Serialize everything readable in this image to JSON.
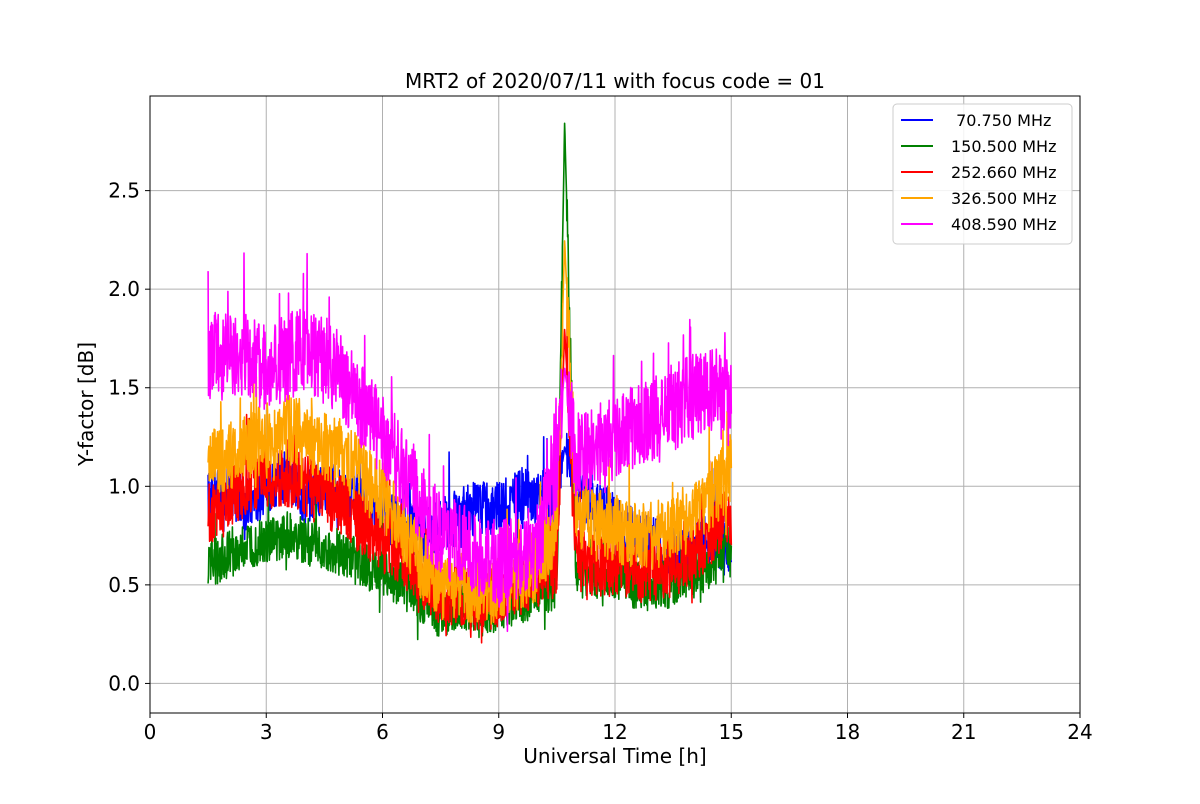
{
  "chart_data": {
    "type": "line",
    "title": "MRT2 of 2020/07/11 with focus code = 01",
    "xlabel": "Universal Time [h]",
    "ylabel": "Y-factor [dB]",
    "xlim": [
      0,
      24
    ],
    "ylim": [
      -0.15,
      2.98
    ],
    "xticks": [
      0,
      3,
      6,
      9,
      12,
      15,
      18,
      21,
      24
    ],
    "xtick_labels": [
      "0",
      "3",
      "6",
      "9",
      "12",
      "15",
      "18",
      "21",
      "24"
    ],
    "yticks": [
      0.0,
      0.5,
      1.0,
      1.5,
      2.0,
      2.5
    ],
    "ytick_labels": [
      "0.0",
      "0.5",
      "1.0",
      "1.5",
      "2.0",
      "2.5"
    ],
    "grid": true,
    "legend_position": "top-right",
    "series": [
      {
        "name": " 70.750 MHz",
        "color": "#0000ff",
        "x": [
          1.5,
          2.0,
          2.5,
          3.0,
          3.5,
          4.0,
          4.5,
          5.0,
          5.5,
          6.0,
          6.5,
          7.0,
          7.5,
          8.0,
          8.5,
          9.0,
          9.5,
          10.0,
          10.5,
          10.7,
          11.0,
          11.5,
          12.0,
          12.5,
          13.0,
          13.5,
          14.0,
          14.5,
          15.0
        ],
        "y": [
          0.95,
          1.0,
          0.9,
          1.0,
          1.05,
          0.95,
          1.0,
          0.95,
          0.9,
          0.85,
          0.8,
          0.75,
          0.8,
          0.85,
          0.9,
          0.88,
          0.95,
          0.95,
          0.9,
          1.2,
          0.95,
          0.9,
          0.85,
          0.75,
          0.7,
          0.65,
          0.7,
          0.75,
          0.65
        ],
        "amplitude": 0.14
      },
      {
        "name": "150.500 MHz",
        "color": "#008000",
        "x": [
          1.5,
          2.0,
          2.5,
          3.0,
          3.5,
          4.0,
          4.5,
          5.0,
          5.5,
          6.0,
          6.5,
          7.0,
          7.5,
          8.0,
          8.5,
          9.0,
          9.5,
          10.0,
          10.5,
          10.7,
          11.0,
          11.5,
          12.0,
          12.5,
          13.0,
          13.5,
          14.0,
          14.5,
          15.0
        ],
        "y": [
          0.6,
          0.65,
          0.7,
          0.72,
          0.75,
          0.72,
          0.7,
          0.65,
          0.6,
          0.55,
          0.5,
          0.4,
          0.35,
          0.4,
          0.35,
          0.38,
          0.42,
          0.45,
          0.5,
          2.85,
          0.55,
          0.55,
          0.55,
          0.5,
          0.48,
          0.5,
          0.55,
          0.6,
          0.7
        ],
        "amplitude": 0.12
      },
      {
        "name": "252.660 MHz",
        "color": "#ff0000",
        "x": [
          1.5,
          2.0,
          2.5,
          3.0,
          3.5,
          4.0,
          4.5,
          5.0,
          5.5,
          6.0,
          6.5,
          7.0,
          7.5,
          8.0,
          8.5,
          9.0,
          9.5,
          10.0,
          10.5,
          10.7,
          11.0,
          11.5,
          12.0,
          12.5,
          13.0,
          13.5,
          14.0,
          14.5,
          15.0
        ],
        "y": [
          0.85,
          0.95,
          1.0,
          1.05,
          1.05,
          1.0,
          0.95,
          0.9,
          0.8,
          0.72,
          0.65,
          0.55,
          0.45,
          0.45,
          0.4,
          0.45,
          0.5,
          0.55,
          0.6,
          1.8,
          0.62,
          0.6,
          0.6,
          0.55,
          0.58,
          0.6,
          0.65,
          0.75,
          0.85
        ],
        "amplitude": 0.16
      },
      {
        "name": "326.500 MHz",
        "color": "#ffa500",
        "x": [
          1.5,
          2.0,
          2.5,
          3.0,
          3.5,
          4.0,
          4.5,
          5.0,
          5.5,
          6.0,
          6.5,
          7.0,
          7.5,
          8.0,
          8.5,
          9.0,
          9.5,
          10.0,
          10.5,
          10.7,
          11.0,
          11.5,
          12.0,
          12.5,
          13.0,
          13.5,
          14.0,
          14.5,
          15.0
        ],
        "y": [
          1.1,
          1.15,
          1.2,
          1.25,
          1.3,
          1.25,
          1.2,
          1.15,
          1.05,
          0.95,
          0.8,
          0.6,
          0.5,
          0.5,
          0.45,
          0.5,
          0.55,
          0.6,
          0.8,
          2.25,
          0.85,
          0.8,
          0.8,
          0.75,
          0.75,
          0.8,
          0.85,
          0.95,
          1.1
        ],
        "amplitude": 0.18
      },
      {
        "name": "408.590 MHz",
        "color": "#ff00ff",
        "x": [
          1.5,
          2.0,
          2.5,
          3.0,
          3.5,
          4.0,
          4.5,
          5.0,
          5.5,
          6.0,
          6.5,
          7.0,
          7.5,
          8.0,
          8.5,
          9.0,
          9.5,
          10.0,
          10.5,
          10.7,
          11.0,
          11.5,
          12.0,
          12.5,
          13.0,
          13.5,
          14.0,
          14.5,
          15.0
        ],
        "y": [
          1.65,
          1.7,
          1.65,
          1.6,
          1.65,
          1.7,
          1.65,
          1.55,
          1.4,
          1.25,
          1.1,
          0.9,
          0.75,
          0.7,
          0.65,
          0.6,
          0.65,
          0.7,
          1.1,
          1.6,
          1.15,
          1.2,
          1.25,
          1.3,
          1.35,
          1.4,
          1.45,
          1.5,
          1.4
        ],
        "amplitude": 0.22
      }
    ]
  }
}
